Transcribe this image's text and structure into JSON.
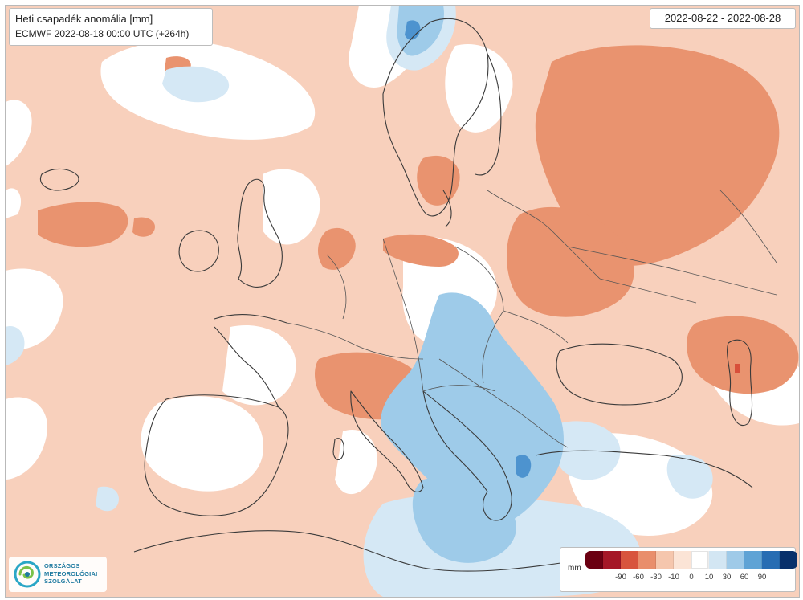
{
  "map": {
    "title": "Heti csapadék anomália [mm]",
    "subtitle": "ECMWF 2022-08-18 00:00 UTC (+264h)",
    "date_range": "2022-08-22 - 2022-08-28",
    "legend": {
      "unit": "mm",
      "swatch_colors": [
        "#6b0012",
        "#a51727",
        "#d8543d",
        "#e98e6c",
        "#f5c6ad",
        "#fbe4d6",
        "#ffffff",
        "#d3e6f3",
        "#9fcae8",
        "#5fa3d5",
        "#276db3",
        "#08306b"
      ],
      "tick_labels": [
        "-90",
        "-60",
        "-30",
        "-10",
        "0",
        "10",
        "30",
        "60",
        "90"
      ]
    },
    "anomaly_colors": {
      "dry_light": "#f8d0bc",
      "dry_medium": "#e9936f",
      "dry_strong": "#d84f3a",
      "wet_light": "#d5e8f5",
      "wet_medium": "#9ecbe9",
      "wet_strong": "#4d93cf"
    },
    "logo": {
      "icon": "omsz-logo-icon",
      "lines": [
        "ORSZÁGOS",
        "METEOROLÓGIAI",
        "SZOLGÁLAT"
      ]
    }
  }
}
